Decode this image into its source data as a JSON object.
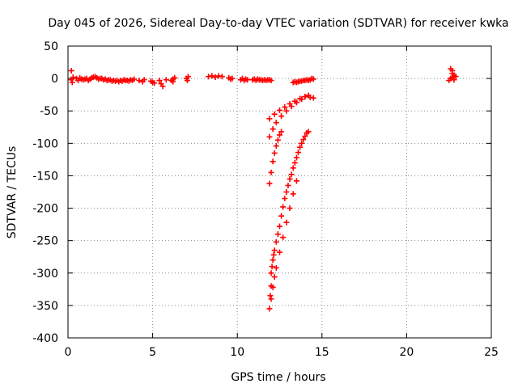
{
  "chart_data": {
    "type": "scatter",
    "title": "Day 045 of 2026, Sidereal Day-to-day VTEC variation (SDTVAR) for receiver kwka",
    "xlabel": "GPS time / hours",
    "ylabel": "SDTVAR / TECUs",
    "xlim": [
      0,
      25
    ],
    "ylim": [
      -400,
      50
    ],
    "xticks": [
      0,
      5,
      10,
      15,
      20,
      25
    ],
    "yticks": [
      50,
      0,
      -50,
      -100,
      -150,
      -200,
      -250,
      -300,
      -350,
      -400
    ],
    "grid": true,
    "marker": "+",
    "series": [
      {
        "name": "SDTVAR",
        "color": "#ff0000",
        "points": [
          [
            0.2,
            12
          ],
          [
            0.2,
            -2
          ],
          [
            0.25,
            -6
          ],
          [
            0.3,
            2
          ],
          [
            0.5,
            0
          ],
          [
            0.6,
            -3
          ],
          [
            0.7,
            1
          ],
          [
            0.8,
            -1
          ],
          [
            0.9,
            -2
          ],
          [
            1.0,
            -1
          ],
          [
            1.1,
            0
          ],
          [
            1.2,
            -3
          ],
          [
            1.3,
            -1
          ],
          [
            1.4,
            1
          ],
          [
            1.5,
            2
          ],
          [
            1.6,
            3
          ],
          [
            1.7,
            1
          ],
          [
            1.8,
            -1
          ],
          [
            1.9,
            0
          ],
          [
            2.0,
            0
          ],
          [
            2.1,
            -2
          ],
          [
            2.2,
            -1
          ],
          [
            2.3,
            -3
          ],
          [
            2.4,
            -2
          ],
          [
            2.5,
            -2
          ],
          [
            2.6,
            -4
          ],
          [
            2.7,
            -3
          ],
          [
            2.8,
            -4
          ],
          [
            2.9,
            -3
          ],
          [
            3.0,
            -5
          ],
          [
            3.1,
            -3
          ],
          [
            3.2,
            -4
          ],
          [
            3.3,
            -2
          ],
          [
            3.4,
            -3
          ],
          [
            3.5,
            -3
          ],
          [
            3.6,
            -4
          ],
          [
            3.7,
            -2
          ],
          [
            3.8,
            -3
          ],
          [
            3.9,
            -1
          ],
          [
            4.2,
            -3
          ],
          [
            4.4,
            -5
          ],
          [
            4.5,
            -2
          ],
          [
            4.9,
            -4
          ],
          [
            5.0,
            -6
          ],
          [
            5.1,
            -7
          ],
          [
            5.4,
            -3
          ],
          [
            5.5,
            -8
          ],
          [
            5.6,
            -12
          ],
          [
            5.8,
            -2
          ],
          [
            6.1,
            -3
          ],
          [
            6.2,
            -1
          ],
          [
            6.3,
            1
          ],
          [
            6.2,
            -5
          ],
          [
            7.0,
            0
          ],
          [
            7.05,
            -3
          ],
          [
            7.1,
            3
          ],
          [
            8.3,
            3
          ],
          [
            8.5,
            4
          ],
          [
            8.7,
            2
          ],
          [
            8.9,
            4
          ],
          [
            9.1,
            3
          ],
          [
            9.5,
            1
          ],
          [
            9.6,
            -1
          ],
          [
            9.7,
            0
          ],
          [
            10.2,
            -2
          ],
          [
            10.3,
            0
          ],
          [
            10.4,
            -3
          ],
          [
            10.5,
            -1
          ],
          [
            10.6,
            -2
          ],
          [
            10.9,
            -2
          ],
          [
            11.0,
            -1
          ],
          [
            11.1,
            -3
          ],
          [
            11.2,
            -1
          ],
          [
            11.3,
            -2
          ],
          [
            11.4,
            -2
          ],
          [
            11.5,
            -3
          ],
          [
            11.6,
            -2
          ],
          [
            11.7,
            -3
          ],
          [
            11.8,
            -2
          ],
          [
            11.9,
            -2
          ],
          [
            12.0,
            -3
          ],
          [
            13.3,
            -6
          ],
          [
            13.4,
            -5
          ],
          [
            13.5,
            -6
          ],
          [
            13.6,
            -5
          ],
          [
            13.7,
            -4
          ],
          [
            13.8,
            -4
          ],
          [
            13.9,
            -3
          ],
          [
            14.0,
            -3
          ],
          [
            14.1,
            -2
          ],
          [
            14.2,
            -3
          ],
          [
            14.3,
            -2
          ],
          [
            14.4,
            0
          ],
          [
            14.5,
            -1
          ],
          [
            11.9,
            -62
          ],
          [
            12.2,
            -55
          ],
          [
            12.5,
            -49
          ],
          [
            12.8,
            -44
          ],
          [
            13.1,
            -39
          ],
          [
            13.4,
            -35
          ],
          [
            13.7,
            -31
          ],
          [
            14.0,
            -28
          ],
          [
            14.3,
            -29
          ],
          [
            14.5,
            -30
          ],
          [
            11.9,
            -90
          ],
          [
            12.1,
            -78
          ],
          [
            12.3,
            -68
          ],
          [
            12.6,
            -58
          ],
          [
            12.9,
            -50
          ],
          [
            13.2,
            -43
          ],
          [
            13.5,
            -37
          ],
          [
            13.8,
            -32
          ],
          [
            14.0,
            -28
          ],
          [
            14.2,
            -26
          ],
          [
            11.9,
            -162
          ],
          [
            12.0,
            -145
          ],
          [
            12.1,
            -128
          ],
          [
            12.2,
            -115
          ],
          [
            12.3,
            -104
          ],
          [
            12.4,
            -95
          ],
          [
            12.5,
            -87
          ],
          [
            12.6,
            -82
          ],
          [
            11.9,
            -355
          ],
          [
            11.95,
            -335
          ],
          [
            12.0,
            -320
          ],
          [
            12.0,
            -300
          ],
          [
            12.05,
            -290
          ],
          [
            12.1,
            -280
          ],
          [
            12.15,
            -272
          ],
          [
            12.2,
            -265
          ],
          [
            12.3,
            -252
          ],
          [
            12.4,
            -240
          ],
          [
            12.5,
            -228
          ],
          [
            12.6,
            -212
          ],
          [
            12.7,
            -198
          ],
          [
            12.8,
            -185
          ],
          [
            12.9,
            -175
          ],
          [
            13.0,
            -165
          ],
          [
            13.1,
            -155
          ],
          [
            13.2,
            -148
          ],
          [
            13.3,
            -138
          ],
          [
            13.4,
            -130
          ],
          [
            13.5,
            -122
          ],
          [
            13.6,
            -114
          ],
          [
            13.7,
            -106
          ],
          [
            13.8,
            -100
          ],
          [
            13.9,
            -94
          ],
          [
            14.0,
            -89
          ],
          [
            14.1,
            -84
          ],
          [
            14.2,
            -82
          ],
          [
            12.0,
            -340
          ],
          [
            12.1,
            -322
          ],
          [
            12.2,
            -306
          ],
          [
            12.3,
            -292
          ],
          [
            12.5,
            -268
          ],
          [
            12.7,
            -245
          ],
          [
            12.9,
            -222
          ],
          [
            13.1,
            -200
          ],
          [
            13.3,
            -178
          ],
          [
            13.5,
            -158
          ],
          [
            22.6,
            15
          ],
          [
            22.7,
            12
          ],
          [
            22.7,
            8
          ],
          [
            22.8,
            5
          ],
          [
            22.7,
            2
          ],
          [
            22.6,
            0
          ],
          [
            22.8,
            -2
          ],
          [
            22.9,
            3
          ],
          [
            22.5,
            -3
          ]
        ]
      }
    ]
  }
}
